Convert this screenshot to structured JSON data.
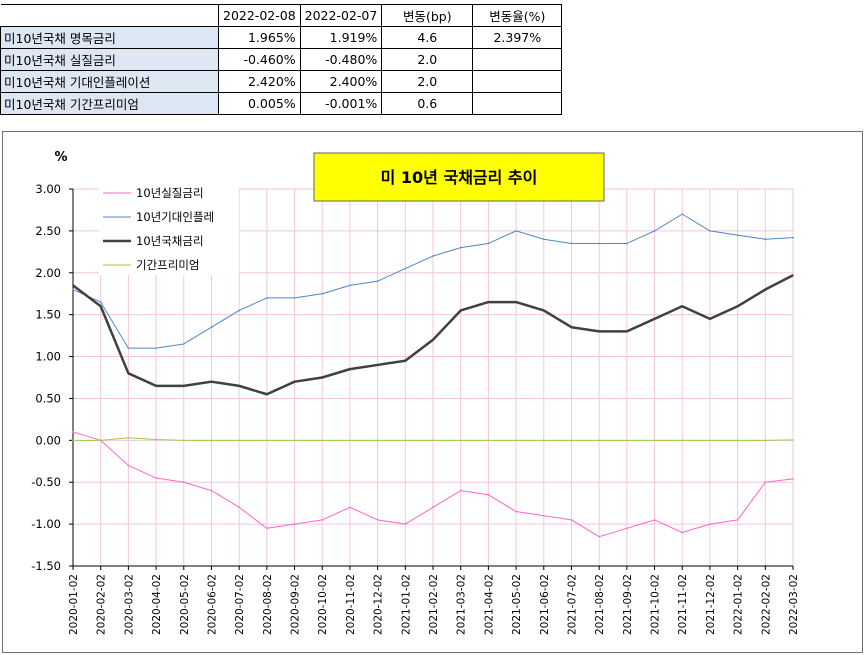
{
  "table": {
    "headers": [
      "2022-02-08",
      "2022-02-07",
      "변동(bp)",
      "변동율(%)"
    ],
    "rows": [
      {
        "label": "미10년국채 명목금리",
        "v1": "1.965%",
        "v2": "1.919%",
        "bp": "4.6",
        "pct": "2.397%"
      },
      {
        "label": "미10년국채 실질금리",
        "v1": "-0.460%",
        "v2": "-0.480%",
        "bp": "2.0",
        "pct": ""
      },
      {
        "label": "미10년국채 기대인플레이션",
        "v1": "2.420%",
        "v2": "2.400%",
        "bp": "2.0",
        "pct": ""
      },
      {
        "label": "미10년국채 기간프리미엄",
        "v1": "0.005%",
        "v2": "-0.001%",
        "bp": "0.6",
        "pct": ""
      }
    ]
  },
  "chart_data": {
    "type": "line",
    "title": "미 10년 국채금리 추이",
    "ylabel": "%",
    "ylim": [
      -1.5,
      3.0
    ],
    "yticks": [
      "3.00",
      "2.50",
      "2.00",
      "1.50",
      "1.00",
      "0.50",
      "0.00",
      "-0.50",
      "-1.00",
      "-1.50"
    ],
    "ytick_values": [
      3.0,
      2.5,
      2.0,
      1.5,
      1.0,
      0.5,
      0.0,
      -0.5,
      -1.0,
      -1.5
    ],
    "x": [
      "2020-01-02",
      "2020-02-02",
      "2020-03-02",
      "2020-04-02",
      "2020-05-02",
      "2020-06-02",
      "2020-07-02",
      "2020-08-02",
      "2020-09-02",
      "2020-10-02",
      "2020-11-02",
      "2020-12-02",
      "2021-01-02",
      "2021-02-02",
      "2021-03-02",
      "2021-04-02",
      "2021-05-02",
      "2021-06-02",
      "2021-07-02",
      "2021-08-02",
      "2021-09-02",
      "2021-10-02",
      "2021-11-02",
      "2021-12-02",
      "2022-01-02",
      "2022-02-02",
      "2022-03-02"
    ],
    "series": [
      {
        "name": "10년실질금리",
        "color": "#ff66cc",
        "values": [
          0.1,
          0.0,
          -0.3,
          -0.45,
          -0.5,
          -0.6,
          -0.8,
          -1.05,
          -1.0,
          -0.95,
          -0.8,
          -0.95,
          -1.0,
          -0.8,
          -0.6,
          -0.65,
          -0.85,
          -0.9,
          -0.95,
          -1.15,
          -1.05,
          -0.95,
          -1.1,
          -1.0,
          -0.95,
          -0.5,
          -0.46
        ]
      },
      {
        "name": "10년기대인플레",
        "color": "#4e86c8",
        "values": [
          1.8,
          1.65,
          1.1,
          1.1,
          1.15,
          1.35,
          1.55,
          1.7,
          1.7,
          1.75,
          1.85,
          1.9,
          2.05,
          2.2,
          2.3,
          2.35,
          2.5,
          2.4,
          2.35,
          2.35,
          2.35,
          2.5,
          2.7,
          2.5,
          2.45,
          2.4,
          2.42
        ]
      },
      {
        "name": "10년국채금리",
        "color": "#404040",
        "values": [
          1.85,
          1.6,
          0.8,
          0.65,
          0.65,
          0.7,
          0.65,
          0.55,
          0.7,
          0.75,
          0.85,
          0.9,
          0.95,
          1.2,
          1.55,
          1.65,
          1.65,
          1.55,
          1.35,
          1.3,
          1.3,
          1.45,
          1.6,
          1.45,
          1.6,
          1.8,
          1.97
        ]
      },
      {
        "name": "기간프리미엄",
        "color": "#99cc55",
        "values": [
          0.0,
          0.0,
          0.03,
          0.01,
          0.0,
          0.0,
          0.0,
          0.0,
          0.0,
          0.0,
          0.0,
          0.0,
          0.0,
          0.0,
          0.0,
          0.0,
          0.0,
          0.0,
          0.0,
          0.0,
          0.0,
          0.0,
          0.0,
          0.0,
          0.0,
          0.0,
          0.005
        ]
      }
    ],
    "legend": [
      "10년실질금리",
      "10년기대인플레",
      "10년국채금리",
      "기간프리미엄"
    ],
    "legend_position": "top-left",
    "grid": true,
    "title_bg": "#ffff00"
  }
}
